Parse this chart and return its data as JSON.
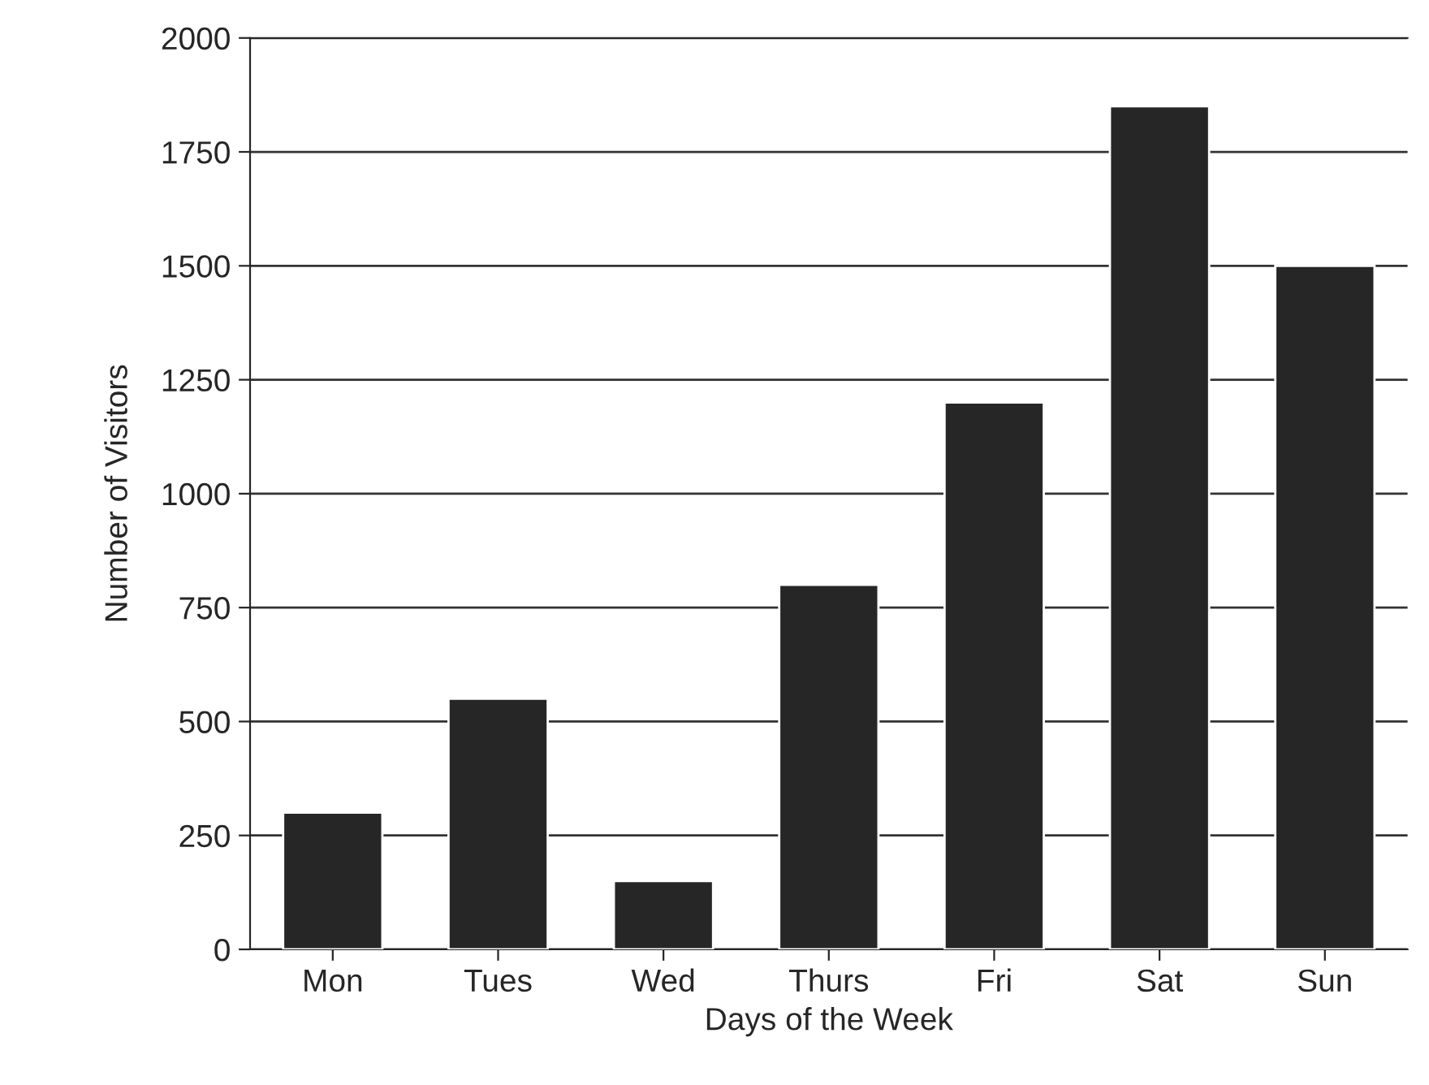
{
  "chart_data": {
    "type": "bar",
    "xlabel": "Days of the Week",
    "ylabel": "Number of Visitors",
    "categories": [
      "Mon",
      "Tues",
      "Wed",
      "Thurs",
      "Fri",
      "Sat",
      "Sun"
    ],
    "values": [
      300,
      550,
      150,
      800,
      1200,
      1850,
      1500
    ],
    "color": "#262626",
    "ylim": [
      0,
      2000
    ],
    "yticks": [
      0,
      250,
      500,
      750,
      1000,
      1250,
      1500,
      1750,
      2000
    ],
    "grid": "y"
  }
}
